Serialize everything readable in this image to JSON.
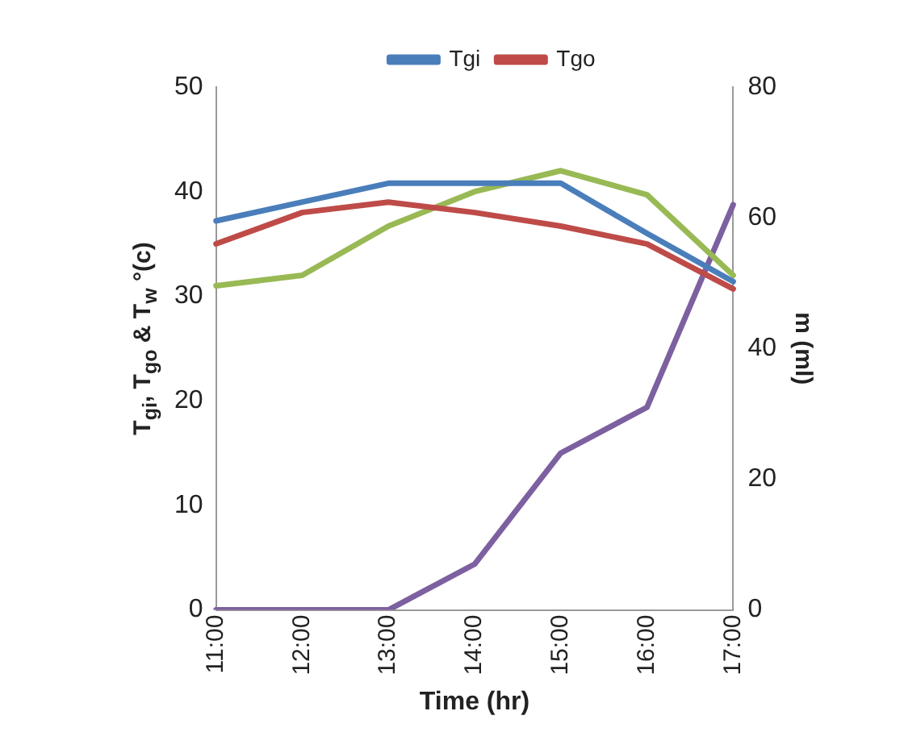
{
  "chart_data": {
    "type": "line",
    "xlabel": "Time (hr)",
    "ylabel": "T$_{gi}$, T$_{go}$ & T$_{w}$ °(c)",
    "y2label": "m (ml)",
    "categories": [
      "11:00",
      "12:00",
      "13:00",
      "14:00",
      "15:00",
      "16:00",
      "17:00"
    ],
    "series": [
      {
        "name": "Tgi",
        "color": "#4a7ebb",
        "values": [
          37.2,
          39,
          40.8,
          40.8,
          40.8,
          36,
          31.4
        ]
      },
      {
        "name": "Tgo",
        "color": "#be4b48",
        "values": [
          35,
          38,
          39,
          38,
          36.7,
          35,
          30.7
        ]
      },
      {
        "color": "#98b954",
        "values": [
          31,
          32,
          36.7,
          40,
          42,
          39.7,
          32
        ]
      },
      {
        "color": "#7d60a0",
        "axis": "y2",
        "values": [
          0,
          0,
          0,
          7,
          24,
          31,
          62
        ]
      }
    ],
    "ylim": [
      0,
      50
    ],
    "yticks": [
      0,
      10,
      20,
      30,
      40,
      50
    ],
    "y2lim": [
      0,
      80
    ],
    "y2ticks": [
      0,
      20,
      40,
      60,
      80
    ],
    "grid": false,
    "legend": "top",
    "marker": "none",
    "line_style": "solid"
  }
}
